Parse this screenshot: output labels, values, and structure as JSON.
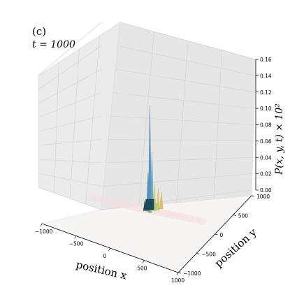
{
  "chart_data": {
    "type": "surface3d",
    "panel_label": "(c)",
    "time_label": "t = 1000",
    "xlabel": "position x",
    "ylabel": "position y",
    "zlabel": "P(x, y, t) × 10²",
    "xlim": [
      -1000,
      1000
    ],
    "ylim": [
      -1000,
      1000
    ],
    "zlim": [
      0,
      0.16
    ],
    "x_ticks": [
      -1000,
      -500,
      0,
      500,
      1000
    ],
    "y_ticks": [
      -1000,
      -500,
      0,
      500,
      1000
    ],
    "z_ticks": [
      0.0,
      0.02,
      0.04,
      0.06,
      0.08,
      0.1,
      0.12,
      0.14,
      0.16
    ],
    "x_tick_labels": [
      "−1000",
      "−500",
      "0",
      "500",
      "1000"
    ],
    "y_tick_labels": [
      "−1000",
      "−500",
      "0",
      "500",
      "1000"
    ],
    "z_tick_labels": [
      "0.00",
      "0.02",
      "0.04",
      "0.06",
      "0.08",
      "0.10",
      "0.12",
      "0.14",
      "0.16"
    ],
    "grid": true,
    "peaks": [
      {
        "x": 40,
        "y": 10,
        "z": 0.122,
        "color": "#5b8fb9"
      },
      {
        "x": 60,
        "y": 30,
        "z": 0.068,
        "color": "#6aa7cf"
      },
      {
        "x": 30,
        "y": -20,
        "z": 0.045,
        "color": "#3f8fa8"
      },
      {
        "x": 80,
        "y": 60,
        "z": 0.033,
        "color": "#c8d47a"
      },
      {
        "x": 120,
        "y": 90,
        "z": 0.025,
        "color": "#d9c27a"
      },
      {
        "x": 150,
        "y": 120,
        "z": 0.02,
        "color": "#e0b86a"
      },
      {
        "x": 100,
        "y": 40,
        "z": 0.017,
        "color": "#a8cf6a"
      },
      {
        "x": 20,
        "y": 20,
        "z": 0.022,
        "color": "#2c6e7a"
      },
      {
        "x": -10,
        "y": -30,
        "z": 0.012,
        "color": "#1a3f4d"
      },
      {
        "x": 70,
        "y": -40,
        "z": 0.01,
        "color": "#9ec96b"
      }
    ],
    "colors": {
      "low": "#f5e0e0",
      "high": "#5b8fb9"
    }
  }
}
